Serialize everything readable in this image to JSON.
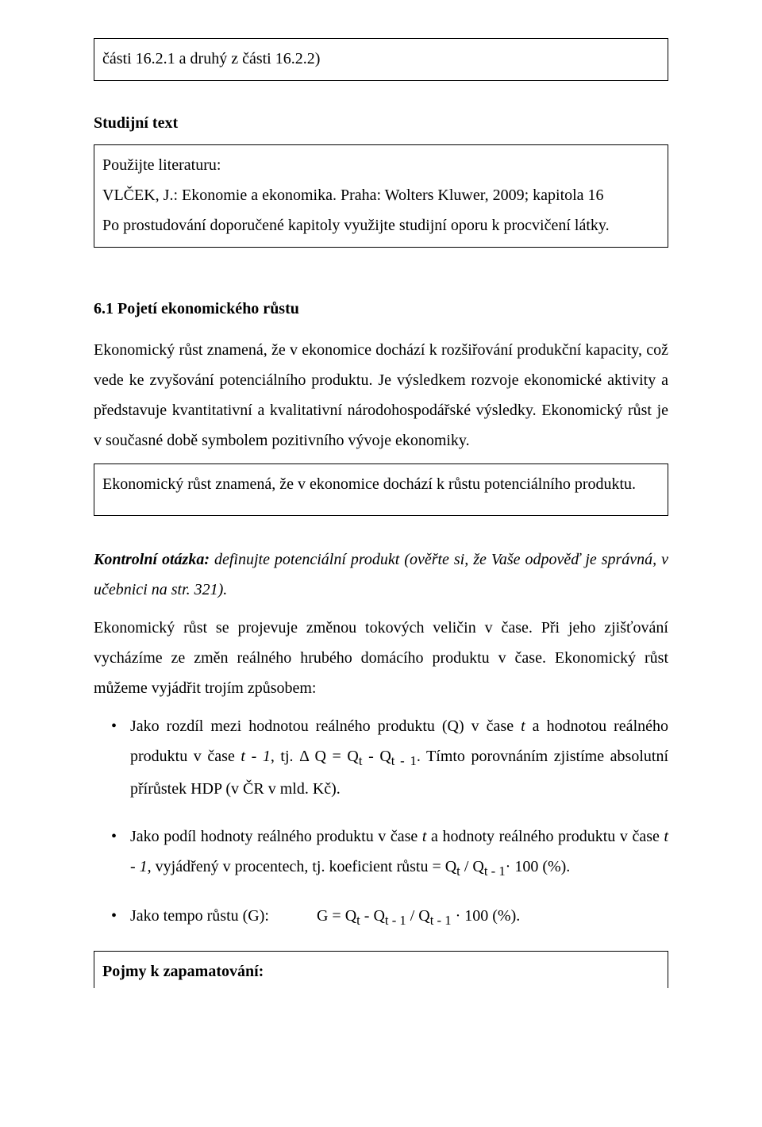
{
  "box_top": {
    "text": "části 16.2.1 a druhý z části 16.2.2)"
  },
  "study_heading": "Studijní text",
  "study_box": {
    "line1": "Použijte literaturu:",
    "line2": "VLČEK, J.: Ekonomie a ekonomika. Praha: Wolters Kluwer, 2009; kapitola 16",
    "line3": "Po prostudování doporučené kapitoly využijte studijní oporu k procvičení látky."
  },
  "section_6_1": {
    "title": "6.1 Pojetí ekonomického růstu",
    "para1": "Ekonomický růst znamená, že v ekonomice dochází k rozšiřování produkční kapacity, což vede ke zvyšování potenciálního produktu. Je výsledkem rozvoje ekonomické aktivity a představuje kvantitativní a kvalitativní národohospodářské výsledky. Ekonomický růst je v současné době symbolem pozitivního vývoje ekonomiky.",
    "box_text": "Ekonomický růst znamená, že v ekonomice dochází k růstu potenciálního produktu.",
    "control_question_lead": "Kontrolní otázka:",
    "control_question_rest": " definujte potenciální produkt (ověřte si, že Vaše odpověď je správná, v učebnici na str. 321).",
    "para2": "Ekonomický růst se projevuje změnou tokových veličin v čase. Při jeho zjišťování vycházíme ze změn reálného hrubého domácího produktu v čase. Ekonomický růst můžeme vyjádřit trojím způsobem:",
    "bullets": {
      "b1_a": "Jako rozdíl mezi hodnotou reálného produktu (Q) v čase ",
      "b1_t": "t",
      "b1_b": " a hodnotou reálného produktu v čase ",
      "b1_t1": "t - 1",
      "b1_c": ", tj. Δ Q = Q",
      "b1_sub_t": "t",
      "b1_d": " - Q",
      "b1_sub_t1": "t - 1",
      "b1_e": ". Tímto porovnáním zjistíme absolutní přírůstek HDP (v ČR v mld. Kč).",
      "b2_a": "Jako podíl hodnoty reálného produktu v čase ",
      "b2_t": "t",
      "b2_b": " a hodnoty reálného produktu v čase ",
      "b2_t1": "t - 1",
      "b2_c": ", vyjádřený v procentech, tj. koeficient růstu = Q",
      "b2_sub_t": "t",
      "b2_d": " / Q",
      "b2_sub_t1": "t - 1",
      "b2_e": "· 100 (%).",
      "b3_a": "Jako tempo růstu (G):",
      "b3_gap": "            ",
      "b3_b": "G = Q",
      "b3_sub_t": "t",
      "b3_c": " - Q",
      "b3_sub_t1a": "t - 1",
      "b3_d": " / Q",
      "b3_sub_t1b": "t - 1",
      "b3_e": " · 100 (%)."
    }
  },
  "box_bottom": {
    "text": "Pojmy k zapamatování:"
  }
}
